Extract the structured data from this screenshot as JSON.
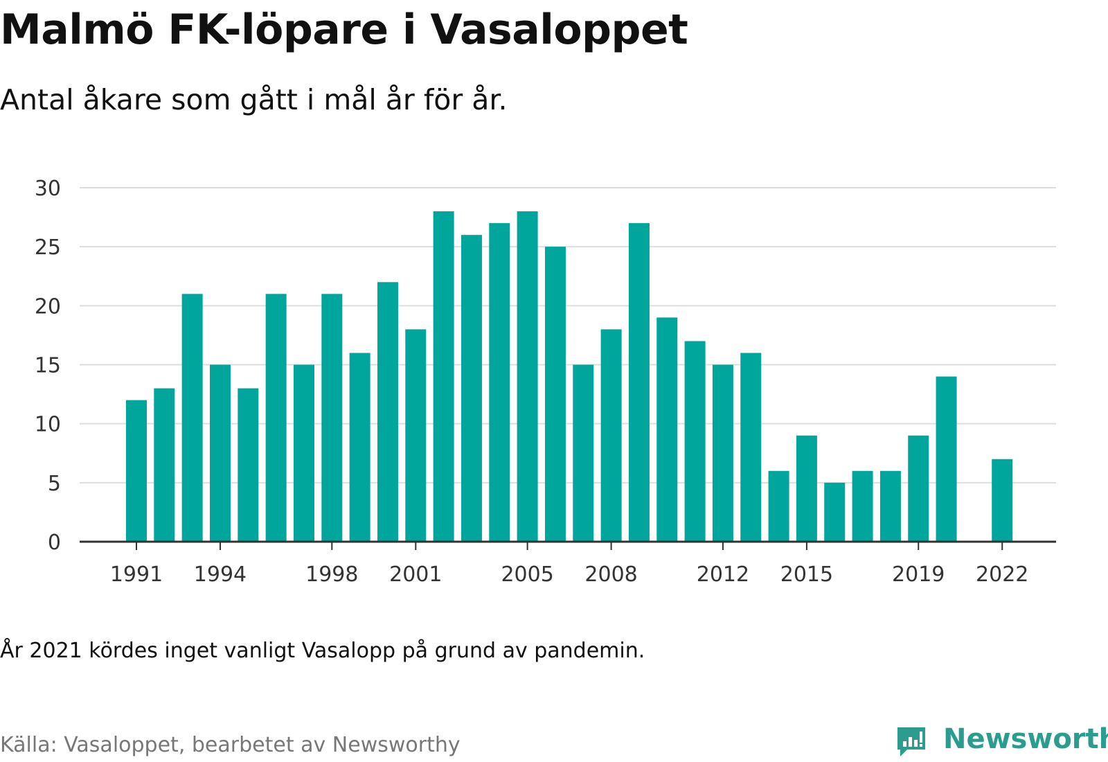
{
  "chart_data": {
    "type": "bar",
    "title": "Malmö FK-löpare i Vasaloppet",
    "subtitle": "Antal åkare som gått i mål år för år.",
    "categories": [
      "1991",
      "1992",
      "1993",
      "1994",
      "1995",
      "1996",
      "1997",
      "1998",
      "1999",
      "2000",
      "2001",
      "2002",
      "2003",
      "2004",
      "2005",
      "2006",
      "2007",
      "2008",
      "2009",
      "2010",
      "2011",
      "2012",
      "2013",
      "2014",
      "2015",
      "2016",
      "2017",
      "2018",
      "2019",
      "2020",
      "2021",
      "2022"
    ],
    "values": [
      12,
      13,
      21,
      15,
      13,
      21,
      15,
      21,
      16,
      22,
      18,
      28,
      26,
      27,
      28,
      25,
      15,
      18,
      27,
      19,
      17,
      15,
      16,
      6,
      9,
      5,
      6,
      6,
      9,
      14,
      null,
      7
    ],
    "x_tick_labels": [
      "1991",
      "1994",
      "1998",
      "2001",
      "2005",
      "2008",
      "2012",
      "2015",
      "2019",
      "2022"
    ],
    "y_ticks": [
      0,
      5,
      10,
      15,
      20,
      25,
      30
    ],
    "ylim": [
      0,
      30
    ],
    "grid": true,
    "legend": "none",
    "bar_color": "#00a69c",
    "xlabel": "",
    "ylabel": ""
  },
  "note": "År 2021 kördes inget vanligt Vasalopp på grund av pandemin.",
  "source": "Källa: Vasaloppet, bearbetet av Newsworthy",
  "brand": {
    "name": "Newsworthy",
    "icon": "newsworthy-logo-icon",
    "color": "#2a9d8f"
  }
}
